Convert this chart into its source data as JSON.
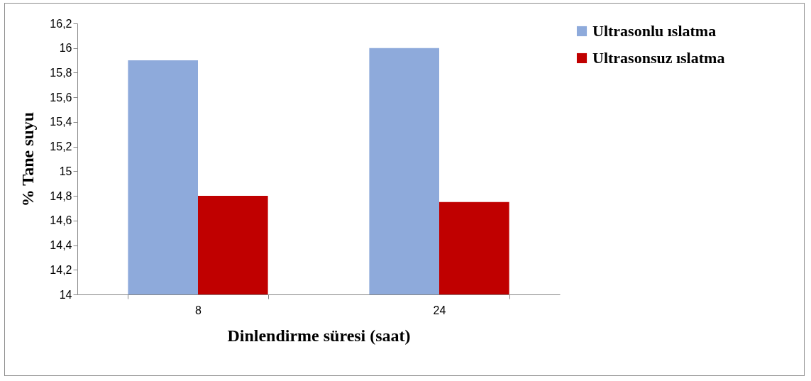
{
  "chart_data": {
    "type": "bar",
    "xlabel": "Dinlendirme süresi (saat)",
    "ylabel": "% Tane suyu",
    "categories": [
      "8",
      "24"
    ],
    "series": [
      {
        "name": "Ultrasonlu ıslatma",
        "color": "#8eaadb",
        "values": [
          15.9,
          16.0
        ]
      },
      {
        "name": "Ultrasonsuz ıslatma",
        "color": "#c00000",
        "values": [
          14.8,
          14.75
        ]
      }
    ],
    "ylim": [
      14,
      16.2
    ],
    "yticks": [
      14,
      {
        "value": 14.2,
        "label": "14,2"
      },
      {
        "value": 14.4,
        "label": "14,4"
      },
      {
        "value": 14.6,
        "label": "14,6"
      },
      {
        "value": 14.8,
        "label": "14,8"
      },
      15,
      {
        "value": 15.2,
        "label": "15,2"
      },
      {
        "value": 15.4,
        "label": "15,4"
      },
      {
        "value": 15.6,
        "label": "15,6"
      },
      {
        "value": 15.8,
        "label": "15,8"
      },
      16,
      {
        "value": 16.2,
        "label": "16,2"
      }
    ],
    "grid": false,
    "legend": "right"
  }
}
